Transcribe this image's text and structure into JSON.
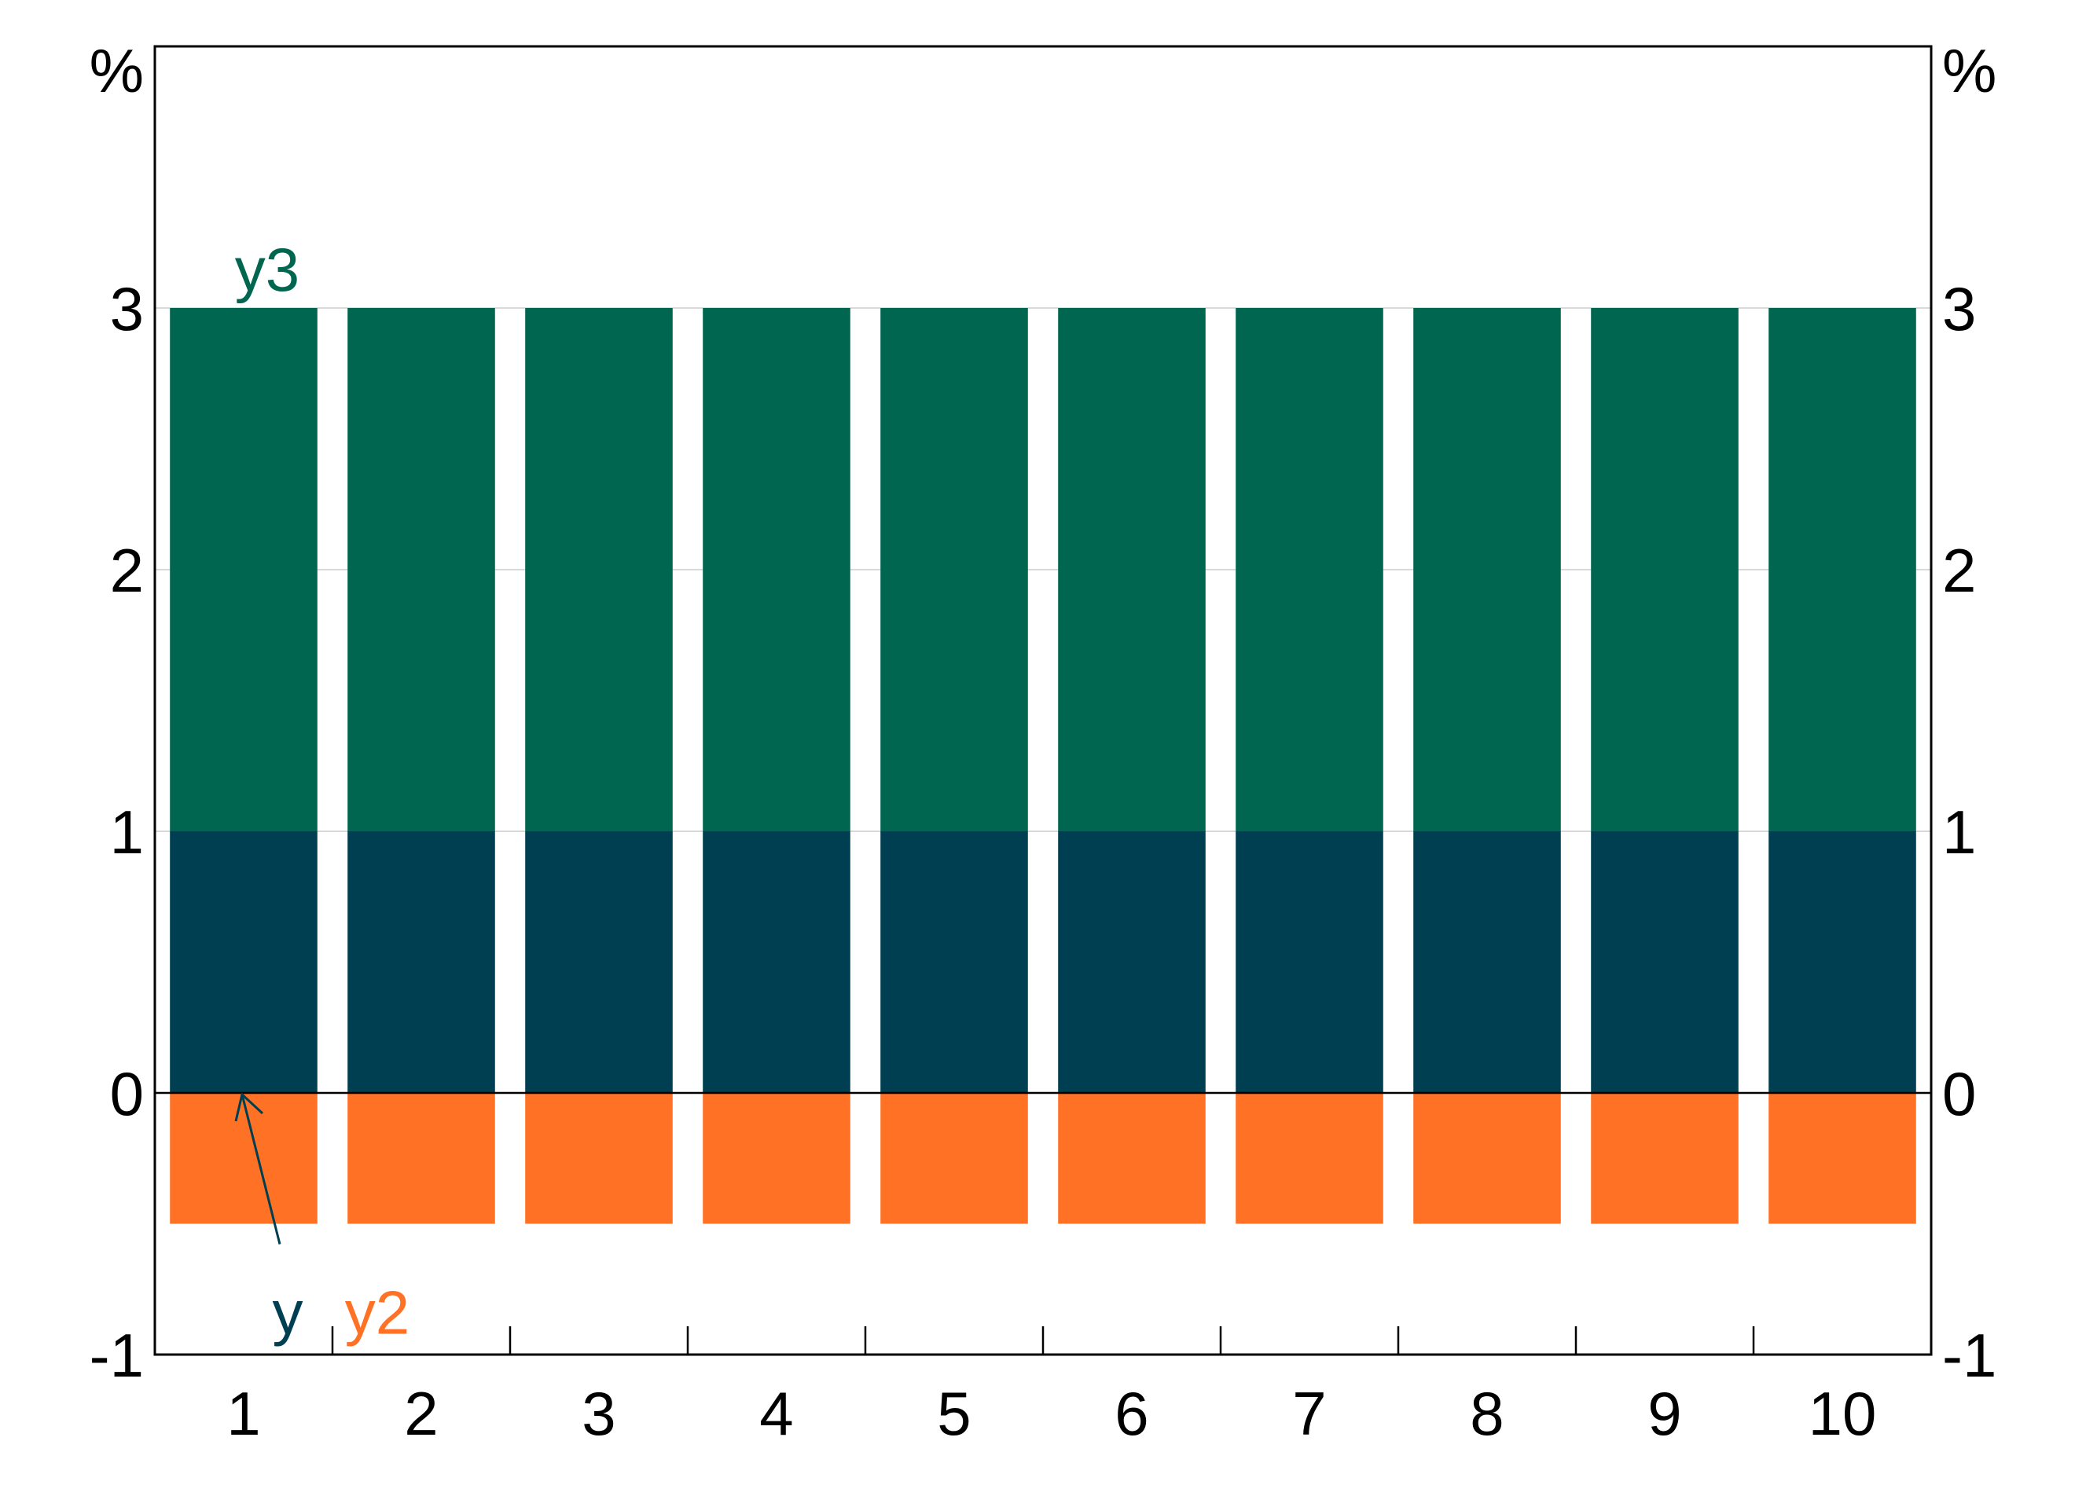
{
  "chart_data": {
    "type": "bar",
    "stacked": true,
    "categories": [
      "1",
      "2",
      "3",
      "4",
      "5",
      "6",
      "7",
      "8",
      "9",
      "10"
    ],
    "series": [
      {
        "name": "y",
        "color": "#003F52",
        "values": [
          1,
          1,
          1,
          1,
          1,
          1,
          1,
          1,
          1,
          1
        ]
      },
      {
        "name": "y2",
        "color": "#FF7125",
        "values": [
          -0.5,
          -0.5,
          -0.5,
          -0.5,
          -0.5,
          -0.5,
          -0.5,
          -0.5,
          -0.5,
          -0.5
        ]
      },
      {
        "name": "y3",
        "color": "#00664F",
        "values": [
          2,
          2,
          2,
          2,
          2,
          2,
          2,
          2,
          2,
          2
        ]
      }
    ],
    "ylim": [
      -1,
      4
    ],
    "yticks": [
      -1,
      0,
      1,
      2,
      3
    ],
    "y_unit_left": "%",
    "y_unit_right": "%",
    "grid": true,
    "title": "",
    "xlabel": "",
    "ylabel": "",
    "annotations": [
      {
        "text": "y3",
        "color": "#00664F"
      },
      {
        "text": "y",
        "color": "#003F52",
        "arrow": true
      },
      {
        "text": "y2",
        "color": "#FF7125"
      }
    ]
  }
}
